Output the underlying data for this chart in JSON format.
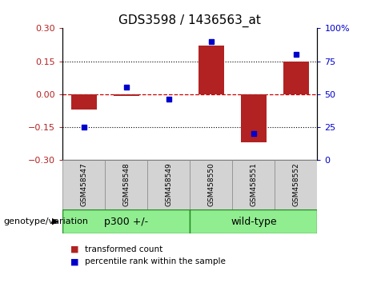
{
  "title": "GDS3598 / 1436563_at",
  "samples": [
    "GSM458547",
    "GSM458548",
    "GSM458549",
    "GSM458550",
    "GSM458551",
    "GSM458552"
  ],
  "red_bars": [
    -0.07,
    -0.01,
    0.0,
    0.22,
    -0.22,
    0.15
  ],
  "blue_dots": [
    25,
    55,
    46,
    90,
    20,
    80
  ],
  "ylim_left": [
    -0.3,
    0.3
  ],
  "ylim_right": [
    0,
    100
  ],
  "yticks_left": [
    -0.3,
    -0.15,
    0,
    0.15,
    0.3
  ],
  "yticks_right": [
    0,
    25,
    50,
    75,
    100
  ],
  "bar_color": "#B22222",
  "dot_color": "#0000CD",
  "zero_line_color": "#CC0000",
  "dotted_line_color": "#000000",
  "group1_label": "p300 +/-",
  "group2_label": "wild-type",
  "group1_indices": [
    0,
    1,
    2
  ],
  "group2_indices": [
    3,
    4,
    5
  ],
  "group_color": "#90EE90",
  "group_edge_color": "#228B22",
  "sample_bg_color": "#D3D3D3",
  "genotype_label": "genotype/variation",
  "legend_red": "transformed count",
  "legend_blue": "percentile rank within the sample",
  "bar_width": 0.6,
  "title_fontsize": 11,
  "tick_fontsize": 8,
  "sample_fontsize": 6.5,
  "group_fontsize": 9,
  "legend_fontsize": 7.5,
  "genotype_fontsize": 8
}
